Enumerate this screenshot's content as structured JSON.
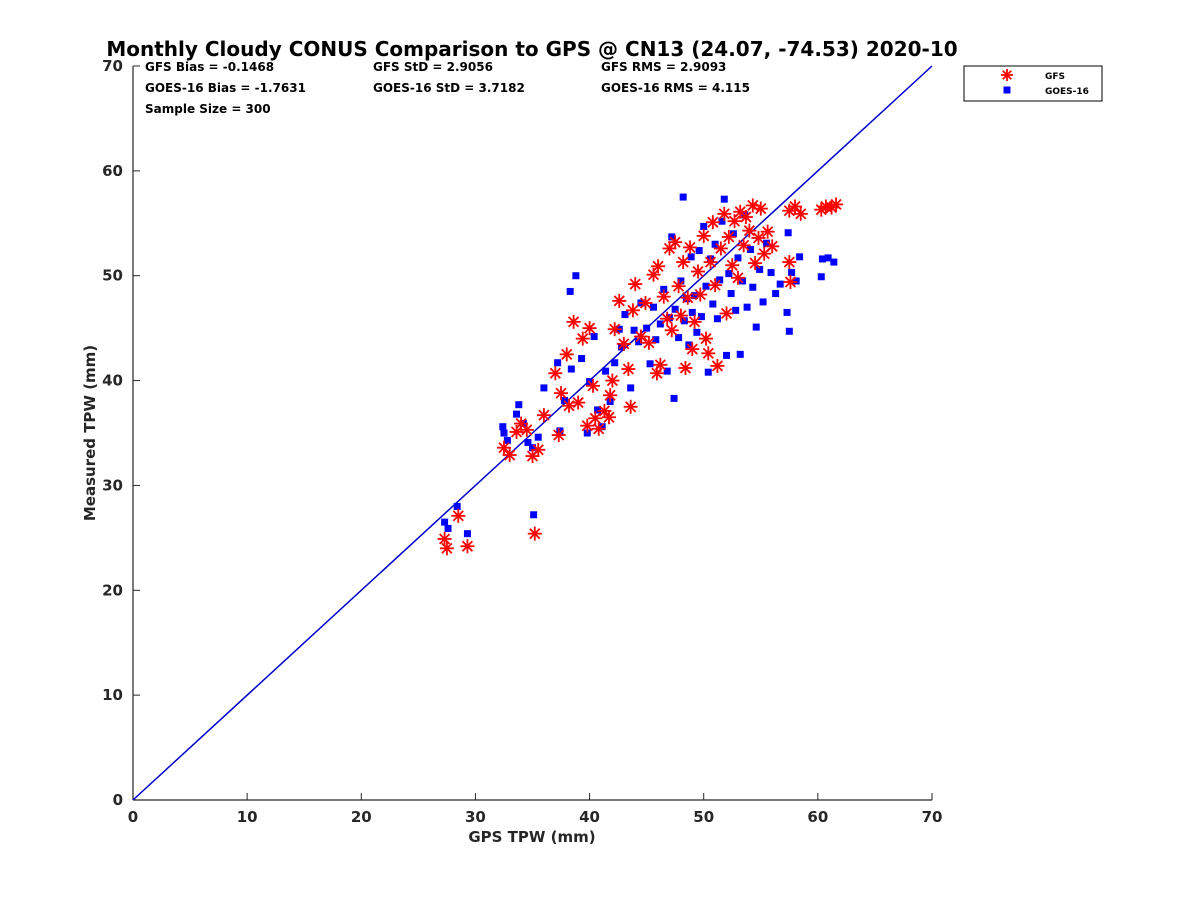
{
  "chart_data": {
    "type": "scatter",
    "title": "Monthly Cloudy CONUS Comparison to GPS @ CN13 (24.07, -74.53) 2020-10",
    "xlabel": "GPS TPW (mm)",
    "ylabel": "Measured TPW (mm)",
    "xlim": [
      0,
      70
    ],
    "ylim": [
      0,
      70
    ],
    "xticks": [
      "0",
      "10",
      "20",
      "30",
      "40",
      "50",
      "60",
      "70"
    ],
    "yticks": [
      "0",
      "10",
      "20",
      "30",
      "40",
      "50",
      "60",
      "70"
    ],
    "grid": false,
    "legend_position": "top-right",
    "stats": {
      "gfs_bias": "GFS Bias = -0.1468",
      "gfs_std": "GFS StD = 2.9056",
      "gfs_rms": "GFS RMS = 2.9093",
      "goes_bias": "GOES-16 Bias = -1.7631",
      "goes_std": "GOES-16 StD = 3.7182",
      "goes_rms": "GOES-16 RMS = 4.115",
      "sample_size": "Sample Size = 300"
    },
    "reference_line": {
      "x": [
        0,
        70
      ],
      "y": [
        0,
        70
      ],
      "color": "#0000cc"
    },
    "series": [
      {
        "name": "GFS",
        "marker": "asterisk",
        "color": "#ff0000",
        "points": [
          [
            27.3,
            24.9
          ],
          [
            27.5,
            24.0
          ],
          [
            28.5,
            27.1
          ],
          [
            29.3,
            24.2
          ],
          [
            32.5,
            33.6
          ],
          [
            33.0,
            32.9
          ],
          [
            33.6,
            35.1
          ],
          [
            34.0,
            35.9
          ],
          [
            34.5,
            35.3
          ],
          [
            35.0,
            32.8
          ],
          [
            35.2,
            25.4
          ],
          [
            35.5,
            33.4
          ],
          [
            36.0,
            36.7
          ],
          [
            37.0,
            40.7
          ],
          [
            37.3,
            34.8
          ],
          [
            37.5,
            38.8
          ],
          [
            38.0,
            42.5
          ],
          [
            38.2,
            37.6
          ],
          [
            38.6,
            45.6
          ],
          [
            39.0,
            37.9
          ],
          [
            39.4,
            44.0
          ],
          [
            39.8,
            35.7
          ],
          [
            40.0,
            45.0
          ],
          [
            40.3,
            39.5
          ],
          [
            40.5,
            36.4
          ],
          [
            40.8,
            35.4
          ],
          [
            41.3,
            37.1
          ],
          [
            41.7,
            36.5
          ],
          [
            41.8,
            38.6
          ],
          [
            42.0,
            40.0
          ],
          [
            42.2,
            44.9
          ],
          [
            42.6,
            47.6
          ],
          [
            43.0,
            43.5
          ],
          [
            43.4,
            41.1
          ],
          [
            43.6,
            37.5
          ],
          [
            43.8,
            46.7
          ],
          [
            44.0,
            49.2
          ],
          [
            44.5,
            44.2
          ],
          [
            44.9,
            47.4
          ],
          [
            45.2,
            43.6
          ],
          [
            45.6,
            50.1
          ],
          [
            45.9,
            40.7
          ],
          [
            46.0,
            50.9
          ],
          [
            46.2,
            41.5
          ],
          [
            46.5,
            48.0
          ],
          [
            46.8,
            45.9
          ],
          [
            47.0,
            52.6
          ],
          [
            47.2,
            44.8
          ],
          [
            47.5,
            53.2
          ],
          [
            47.8,
            49.0
          ],
          [
            48.0,
            46.2
          ],
          [
            48.2,
            51.3
          ],
          [
            48.4,
            41.2
          ],
          [
            48.6,
            47.9
          ],
          [
            48.8,
            52.7
          ],
          [
            49.0,
            43.0
          ],
          [
            49.2,
            45.6
          ],
          [
            49.5,
            50.4
          ],
          [
            49.7,
            48.2
          ],
          [
            50.0,
            53.8
          ],
          [
            50.2,
            44.0
          ],
          [
            50.4,
            42.6
          ],
          [
            50.6,
            51.3
          ],
          [
            50.8,
            55.1
          ],
          [
            51.0,
            49.1
          ],
          [
            51.2,
            41.4
          ],
          [
            51.5,
            52.6
          ],
          [
            51.8,
            55.9
          ],
          [
            52.0,
            46.4
          ],
          [
            52.2,
            53.7
          ],
          [
            52.5,
            51.0
          ],
          [
            52.7,
            55.2
          ],
          [
            53.0,
            49.8
          ],
          [
            53.2,
            56.1
          ],
          [
            53.5,
            52.9
          ],
          [
            53.7,
            55.6
          ],
          [
            54.0,
            54.3
          ],
          [
            54.3,
            56.7
          ],
          [
            54.5,
            51.2
          ],
          [
            54.8,
            53.6
          ],
          [
            55.0,
            56.4
          ],
          [
            55.3,
            52.1
          ],
          [
            55.6,
            54.2
          ],
          [
            56.0,
            52.8
          ],
          [
            57.5,
            51.3
          ],
          [
            57.6,
            49.4
          ],
          [
            57.5,
            56.2
          ],
          [
            58.0,
            56.6
          ],
          [
            58.5,
            55.9
          ],
          [
            60.3,
            56.3
          ],
          [
            60.7,
            56.6
          ],
          [
            61.2,
            56.5
          ],
          [
            61.6,
            56.8
          ]
        ]
      },
      {
        "name": "GOES-16",
        "marker": "square",
        "color": "#0000ff",
        "points": [
          [
            27.3,
            26.5
          ],
          [
            27.6,
            25.9
          ],
          [
            28.4,
            28.0
          ],
          [
            29.3,
            25.4
          ],
          [
            32.4,
            35.6
          ],
          [
            32.5,
            35.0
          ],
          [
            32.8,
            34.3
          ],
          [
            33.6,
            36.8
          ],
          [
            33.8,
            37.7
          ],
          [
            34.2,
            35.9
          ],
          [
            34.6,
            34.1
          ],
          [
            35.0,
            33.6
          ],
          [
            35.1,
            27.2
          ],
          [
            35.5,
            34.6
          ],
          [
            36.0,
            39.3
          ],
          [
            37.2,
            41.7
          ],
          [
            37.4,
            35.2
          ],
          [
            37.8,
            38.1
          ],
          [
            38.3,
            48.5
          ],
          [
            38.4,
            41.1
          ],
          [
            38.8,
            50.0
          ],
          [
            39.3,
            42.1
          ],
          [
            39.8,
            35.0
          ],
          [
            40.0,
            39.9
          ],
          [
            40.4,
            44.2
          ],
          [
            40.7,
            37.2
          ],
          [
            41.1,
            35.6
          ],
          [
            41.4,
            40.9
          ],
          [
            41.8,
            38.0
          ],
          [
            42.2,
            41.7
          ],
          [
            42.6,
            44.9
          ],
          [
            42.8,
            43.2
          ],
          [
            43.1,
            46.3
          ],
          [
            43.6,
            39.3
          ],
          [
            43.9,
            44.8
          ],
          [
            44.3,
            43.7
          ],
          [
            44.5,
            47.4
          ],
          [
            45.0,
            45.0
          ],
          [
            45.3,
            41.6
          ],
          [
            45.6,
            47.0
          ],
          [
            45.8,
            43.9
          ],
          [
            46.2,
            45.4
          ],
          [
            46.5,
            48.7
          ],
          [
            46.8,
            40.9
          ],
          [
            47.0,
            46.0
          ],
          [
            47.2,
            53.7
          ],
          [
            47.4,
            38.3
          ],
          [
            47.5,
            46.8
          ],
          [
            47.8,
            44.1
          ],
          [
            48.0,
            49.5
          ],
          [
            48.2,
            57.5
          ],
          [
            48.3,
            45.7
          ],
          [
            48.5,
            47.8
          ],
          [
            48.7,
            43.4
          ],
          [
            48.9,
            51.8
          ],
          [
            49.0,
            46.5
          ],
          [
            49.2,
            48.1
          ],
          [
            49.4,
            44.6
          ],
          [
            49.6,
            52.4
          ],
          [
            49.8,
            46.1
          ],
          [
            50.0,
            54.7
          ],
          [
            50.2,
            49.0
          ],
          [
            50.4,
            40.8
          ],
          [
            50.6,
            51.6
          ],
          [
            50.8,
            47.3
          ],
          [
            51.0,
            53.0
          ],
          [
            51.2,
            45.9
          ],
          [
            51.4,
            49.6
          ],
          [
            51.6,
            55.2
          ],
          [
            51.8,
            57.3
          ],
          [
            52.0,
            42.4
          ],
          [
            52.2,
            50.2
          ],
          [
            52.4,
            48.3
          ],
          [
            52.6,
            54.0
          ],
          [
            52.8,
            46.7
          ],
          [
            53.0,
            51.7
          ],
          [
            53.2,
            42.5
          ],
          [
            53.4,
            49.5
          ],
          [
            53.6,
            55.8
          ],
          [
            53.8,
            47.0
          ],
          [
            54.1,
            52.5
          ],
          [
            54.3,
            48.9
          ],
          [
            54.6,
            45.1
          ],
          [
            54.9,
            50.6
          ],
          [
            55.2,
            47.5
          ],
          [
            55.5,
            53.1
          ],
          [
            55.9,
            50.3
          ],
          [
            56.3,
            48.3
          ],
          [
            56.7,
            49.2
          ],
          [
            57.3,
            46.5
          ],
          [
            57.4,
            54.1
          ],
          [
            57.5,
            44.7
          ],
          [
            57.7,
            50.3
          ],
          [
            58.1,
            49.5
          ],
          [
            58.4,
            51.8
          ],
          [
            60.3,
            49.9
          ],
          [
            60.4,
            51.6
          ],
          [
            60.9,
            51.7
          ],
          [
            61.4,
            51.3
          ]
        ]
      }
    ]
  }
}
